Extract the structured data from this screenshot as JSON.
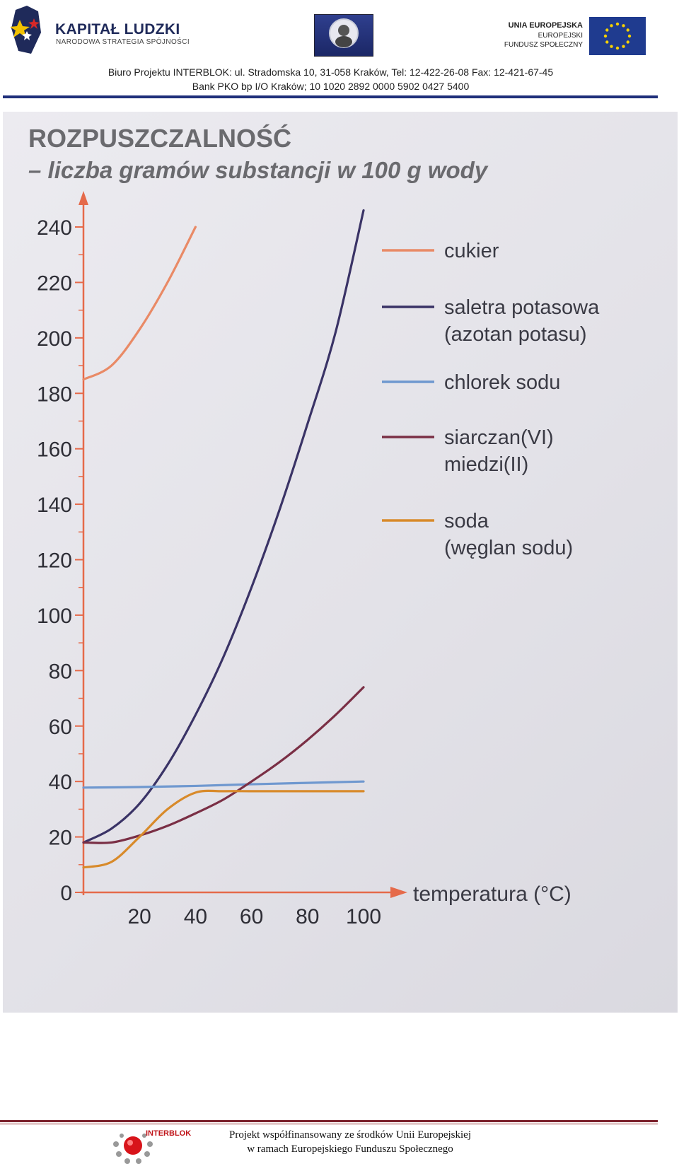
{
  "header": {
    "logo_title": "KAPITAŁ LUDZKI",
    "logo_subtitle": "NARODOWA STRATEGIA SPÓJNOŚCI",
    "ue_title": "UNIA EUROPEJSKA",
    "ue_line2": "EUROPEJSKI",
    "ue_line3": "FUNDUSZ SPOŁECZNY",
    "address_line1": "Biuro Projektu INTERBLOK: ul. Stradomska 10, 31-058 Kraków, Tel: 12-422-26-08 Fax: 12-421-67-45",
    "address_line2": "Bank PKO bp I/O Kraków; 10 1020 2892 0000 5902 0427 5400",
    "rule_color": "#1f2f7a"
  },
  "chart_data": {
    "type": "line",
    "title": "ROZPUSZCZALNOŚĆ",
    "subtitle": "– liczba gramów substancji w 100 g wody",
    "xlabel": "temperatura (°C)",
    "ylabel": "",
    "xlim": [
      0,
      100
    ],
    "ylim": [
      0,
      240
    ],
    "xticks": [
      "20",
      "40",
      "60",
      "80",
      "100"
    ],
    "yticks": [
      "0",
      "20",
      "40",
      "60",
      "80",
      "100",
      "120",
      "140",
      "160",
      "180",
      "200",
      "220",
      "240"
    ],
    "legend_position": "right",
    "series": [
      {
        "name": "cukier",
        "color": "#e98a66",
        "x": [
          0,
          10,
          20,
          30,
          40
        ],
        "y": [
          185,
          190,
          203,
          220,
          240
        ]
      },
      {
        "name": "saletra potasowa\n(azotan potasu)",
        "color": "#3a3366",
        "x": [
          0,
          10,
          20,
          30,
          40,
          50,
          60,
          70,
          80,
          90,
          100
        ],
        "y": [
          18,
          23,
          32,
          46,
          64,
          85,
          110,
          138,
          169,
          202,
          246
        ]
      },
      {
        "name": "chlorek sodu",
        "color": "#6f98cf",
        "x": [
          0,
          20,
          40,
          60,
          80,
          100
        ],
        "y": [
          37.8,
          38,
          38.4,
          39,
          39.5,
          40
        ]
      },
      {
        "name": "siarczan(VI)\nmiedzi(II)",
        "color": "#7a2f45",
        "x": [
          0,
          10,
          20,
          30,
          40,
          50,
          60,
          70,
          80,
          90,
          100
        ],
        "y": [
          18,
          18,
          20.5,
          24,
          28.5,
          33.5,
          40,
          47,
          55,
          64,
          74
        ]
      },
      {
        "name": "soda\n(węglan sodu)",
        "color": "#d88a2a",
        "x": [
          0,
          10,
          20,
          30,
          40,
          50,
          60,
          70,
          80,
          90,
          100
        ],
        "y": [
          9,
          11,
          20,
          30,
          36,
          36.5,
          36.5,
          36.5,
          36.5,
          36.5,
          36.5
        ]
      }
    ]
  },
  "footer": {
    "logo_text": "INTERBLOK",
    "line1": "Projekt współfinansowany ze środków Unii Europejskiej",
    "line2": "w ramach Europejskiego Funduszu Społecznego",
    "rule_color": "#7a1f2a"
  }
}
